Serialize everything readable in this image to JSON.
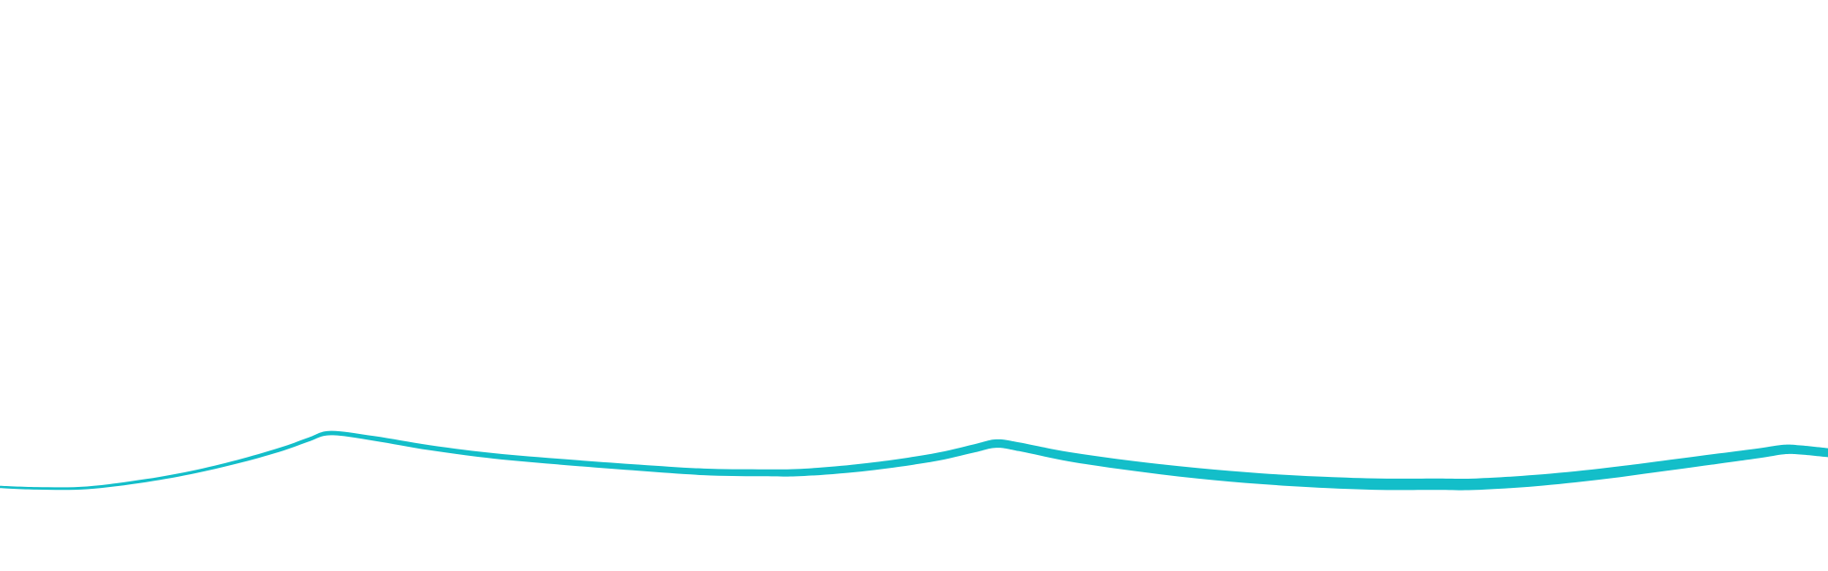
{
  "page": {
    "background_color": "#ffffff"
  },
  "ribbon": {
    "color": "#13bec9",
    "description_shape": "tapering-wave-stroke"
  }
}
